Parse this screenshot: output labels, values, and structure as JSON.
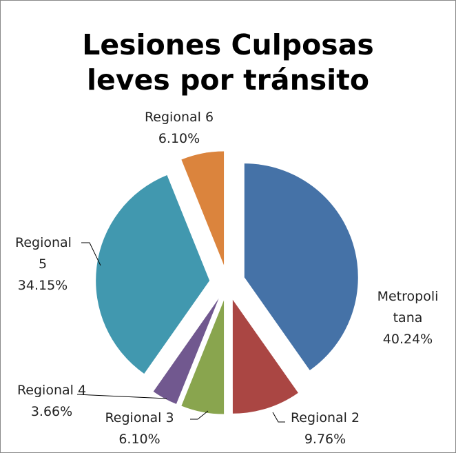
{
  "chart_data": {
    "type": "pie",
    "title": "Lesiones Culposas leves por tránsito",
    "categories": [
      "Metropolitana",
      "Regional 2",
      "Regional 3",
      "Regional 4",
      "Regional 5",
      "Regional 6"
    ],
    "values": [
      40.24,
      9.76,
      6.1,
      3.66,
      34.15,
      6.1
    ],
    "value_labels": [
      "40.24%",
      "9.76%",
      "6.10%",
      "3.66%",
      "34.15%",
      "6.10%"
    ],
    "colors": [
      "#4572a7",
      "#aa4643",
      "#89a54e",
      "#71588f",
      "#4198af",
      "#db843d"
    ]
  }
}
